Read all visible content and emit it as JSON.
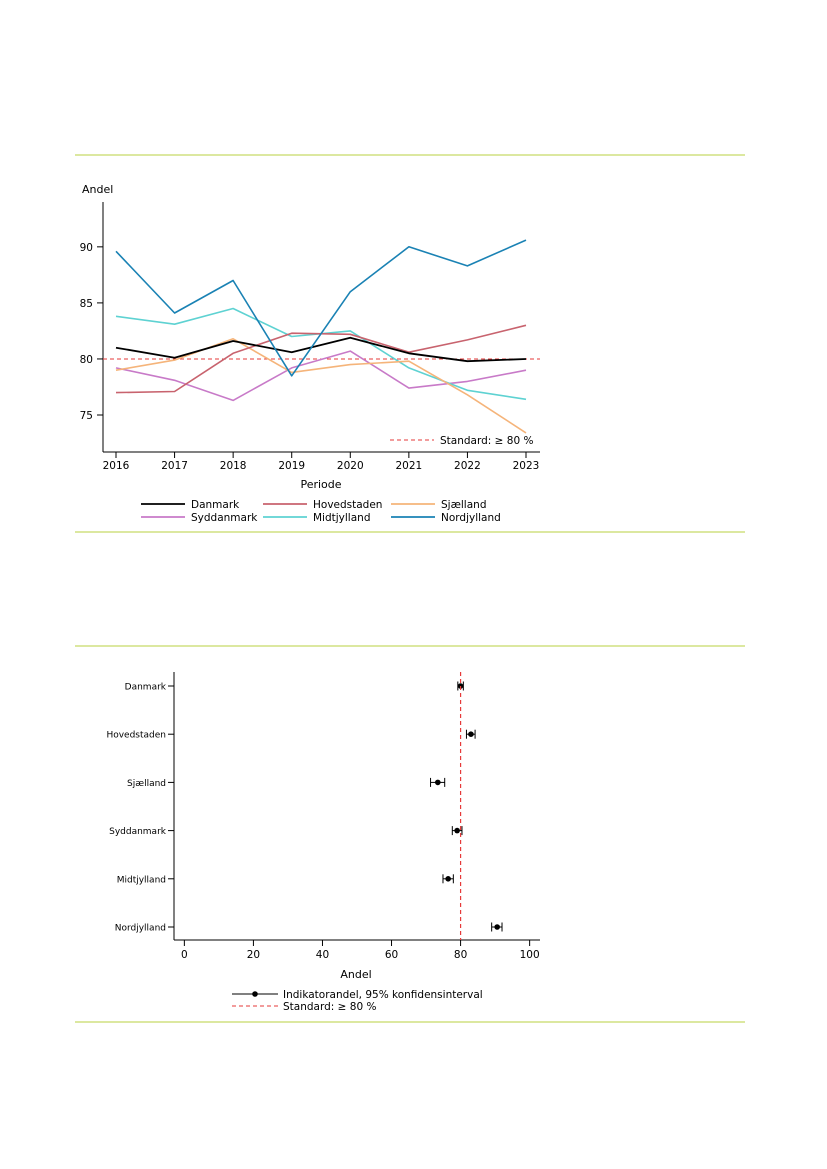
{
  "colors": {
    "divider": "#dce8a0",
    "standard": "#e63a3a"
  },
  "chart_data": [
    {
      "type": "line",
      "ylabel": "Andel",
      "xlabel": "Periode",
      "x": [
        "2016",
        "2017",
        "2018",
        "2019",
        "2020",
        "2021",
        "2022",
        "2023"
      ],
      "xticks": [
        "2016",
        "2017",
        "2018",
        "2019",
        "2020",
        "2021",
        "2022",
        "2023"
      ],
      "yticks": [
        "75",
        "80",
        "85",
        "90"
      ],
      "ylim": [
        71.7,
        94.0
      ],
      "series": [
        {
          "name": "Danmark",
          "color": "#000000",
          "values": [
            81.0,
            80.1,
            81.6,
            80.6,
            81.9,
            80.5,
            79.8,
            80.0
          ]
        },
        {
          "name": "Hovedstaden",
          "color": "#c8636e",
          "values": [
            77.0,
            77.1,
            80.5,
            82.3,
            82.2,
            80.6,
            81.7,
            83.0
          ]
        },
        {
          "name": "Sjælland",
          "color": "#f5b47a",
          "values": [
            79.0,
            79.9,
            81.8,
            78.8,
            79.5,
            79.8,
            76.8,
            73.4
          ]
        },
        {
          "name": "Syddanmark",
          "color": "#c87ac8",
          "values": [
            79.2,
            78.1,
            76.3,
            79.2,
            80.7,
            77.4,
            78.0,
            79.0
          ]
        },
        {
          "name": "Midtjylland",
          "color": "#5ed2d2",
          "values": [
            83.8,
            83.1,
            84.5,
            82.0,
            82.5,
            79.2,
            77.2,
            76.4
          ]
        },
        {
          "name": "Nordjylland",
          "color": "#1a82b4",
          "values": [
            89.6,
            84.1,
            87.0,
            78.5,
            86.0,
            90.0,
            88.3,
            90.6
          ]
        }
      ],
      "reference": {
        "label": "Standard: ≥ 80 %",
        "value": 80
      },
      "legend_position": "bottom"
    },
    {
      "type": "scatter",
      "xlabel": "Andel",
      "xticks": [
        "0",
        "20",
        "40",
        "60",
        "80",
        "100"
      ],
      "xlim": [
        -3,
        103
      ],
      "categories": [
        "Danmark",
        "Hovedstaden",
        "Sjælland",
        "Syddanmark",
        "Midtjylland",
        "Nordjylland"
      ],
      "values": [
        80.0,
        83.0,
        73.4,
        79.0,
        76.4,
        90.6
      ],
      "ci_low": [
        79.2,
        81.7,
        71.3,
        77.6,
        74.9,
        89.0
      ],
      "ci_high": [
        80.8,
        84.2,
        75.4,
        80.4,
        77.9,
        92.0
      ],
      "reference": {
        "label": "Standard: ≥ 80 %",
        "value": 80
      },
      "legend": {
        "point_label": "Indikatorandel, 95% konfidensinterval",
        "line_label": "Standard: ≥ 80 %"
      },
      "legend_position": "bottom"
    }
  ]
}
